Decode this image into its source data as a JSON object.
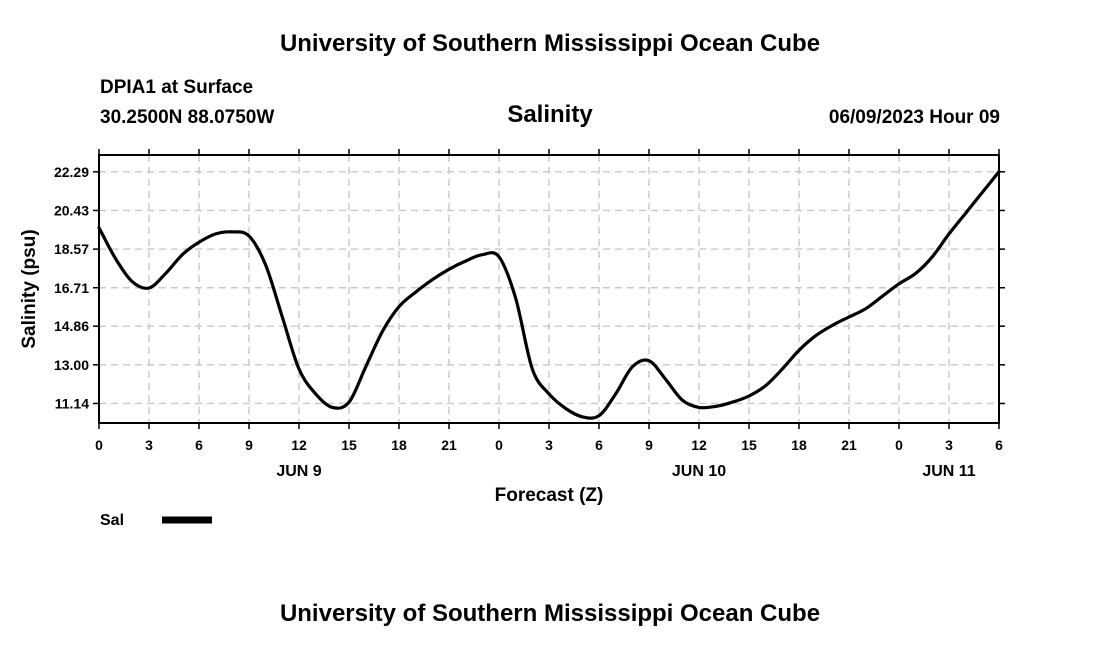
{
  "header": {
    "title": "University of Southern Mississippi Ocean Cube",
    "station": "DPIA1 at Surface",
    "coords": "30.2500N  88.0750W",
    "datetime": "06/09/2023 Hour 09",
    "footer_title": "University of Southern Mississippi Ocean Cube"
  },
  "chart_data": {
    "type": "line",
    "title": "Salinity",
    "xlabel": "Forecast (Z)",
    "ylabel": "Salinity (psu)",
    "xlim": [
      0,
      54
    ],
    "ylim": [
      10.2,
      23.1
    ],
    "x_tick_values": [
      0,
      3,
      6,
      9,
      12,
      15,
      18,
      21,
      24,
      27,
      30,
      33,
      36,
      39,
      42,
      45,
      48,
      51,
      54
    ],
    "x_tick_labels": [
      "0",
      "3",
      "6",
      "9",
      "12",
      "15",
      "18",
      "21",
      "0",
      "3",
      "6",
      "9",
      "12",
      "15",
      "18",
      "21",
      "0",
      "3",
      "6"
    ],
    "day_labels": [
      {
        "x": 12,
        "label": "JUN 9"
      },
      {
        "x": 36,
        "label": "JUN 10"
      },
      {
        "x": 51,
        "label": "JUN 11"
      }
    ],
    "y_tick_values": [
      11.14,
      13.0,
      14.86,
      16.71,
      18.57,
      20.43,
      22.29
    ],
    "y_tick_labels": [
      "11.14",
      "13.00",
      "14.86",
      "16.71",
      "18.57",
      "20.43",
      "22.29"
    ],
    "grid": true,
    "legend": "bottom-left",
    "series": [
      {
        "name": "Sal",
        "color": "#000000",
        "x": [
          0,
          1,
          2,
          3,
          4,
          5,
          6,
          7,
          8,
          9,
          10,
          11,
          12,
          13,
          14,
          15,
          16,
          17,
          18,
          19,
          20,
          21,
          22,
          23,
          24,
          25,
          26,
          27,
          28,
          29,
          30,
          31,
          32,
          33,
          34,
          35,
          36,
          37,
          38,
          39,
          40,
          41,
          42,
          43,
          44,
          45,
          46,
          47,
          48,
          49,
          50,
          51,
          52,
          53,
          54
        ],
        "y": [
          19.6,
          18.1,
          17.0,
          16.7,
          17.4,
          18.3,
          18.9,
          19.3,
          19.4,
          19.2,
          17.8,
          15.3,
          12.8,
          11.6,
          10.95,
          11.2,
          12.9,
          14.6,
          15.8,
          16.5,
          17.1,
          17.6,
          18.0,
          18.3,
          18.2,
          16.2,
          12.8,
          11.6,
          10.9,
          10.5,
          10.55,
          11.6,
          12.9,
          13.2,
          12.3,
          11.3,
          10.95,
          11.0,
          11.2,
          11.5,
          12.0,
          12.8,
          13.7,
          14.4,
          14.9,
          15.3,
          15.7,
          16.3,
          16.9,
          17.4,
          18.2,
          19.3,
          20.3,
          21.3,
          22.3
        ]
      }
    ]
  }
}
